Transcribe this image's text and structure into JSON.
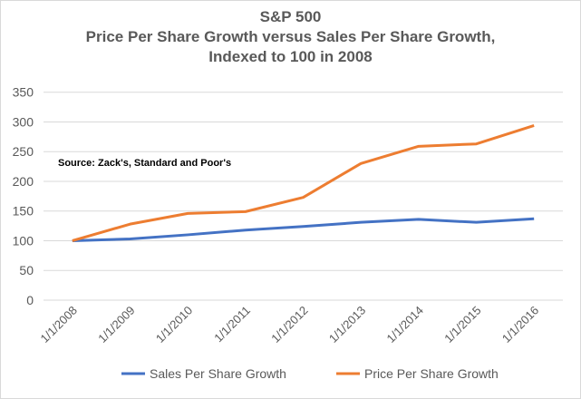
{
  "chart_data": {
    "type": "line",
    "title": "S&P 500",
    "subtitle": [
      "Price Per Share Growth versus Sales Per Share Growth,",
      "Indexed to 100 in 2008"
    ],
    "annotation": "Source: Zack's, Standard and Poor's",
    "categories": [
      "1/1/2008",
      "1/1/2009",
      "1/1/2010",
      "1/1/2011",
      "1/1/2012",
      "1/1/2013",
      "1/1/2014",
      "1/1/2015",
      "1/1/2016"
    ],
    "series": [
      {
        "name": "Sales Per Share Growth",
        "color": "#4472c4",
        "values": [
          100,
          103,
          110,
          118,
          124,
          131,
          136,
          131,
          137
        ]
      },
      {
        "name": "Price Per Share Growth",
        "color": "#ed7d31",
        "values": [
          100,
          128,
          146,
          149,
          173,
          230,
          259,
          263,
          294
        ]
      }
    ],
    "ylim": [
      0,
      350
    ],
    "yticks": [
      0,
      50,
      100,
      150,
      200,
      250,
      300,
      350
    ],
    "grid": true,
    "legend": "bottom"
  }
}
